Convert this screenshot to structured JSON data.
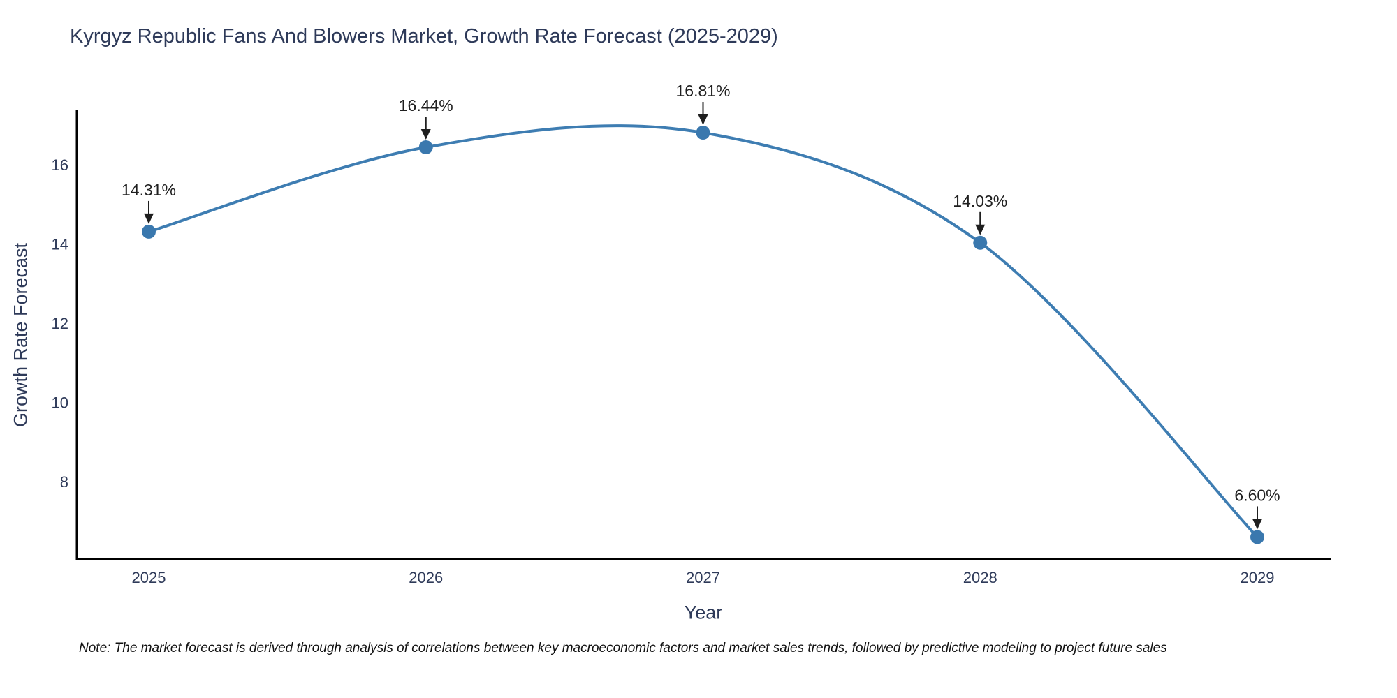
{
  "note": "Note: The market forecast is derived through analysis of correlations between key macroeconomic factors and market sales trends, followed by predictive modeling to project future sales",
  "chart_data": {
    "type": "line",
    "title": "Kyrgyz Republic Fans And Blowers Market, Growth Rate Forecast (2025-2029)",
    "xlabel": "Year",
    "ylabel": "Growth Rate Forecast",
    "x": [
      2025,
      2026,
      2027,
      2028,
      2029
    ],
    "values": [
      14.31,
      16.44,
      16.81,
      14.03,
      6.6
    ],
    "point_labels": [
      "14.31%",
      "16.44%",
      "16.81%",
      "14.03%",
      "6.60%"
    ],
    "yticks": [
      8,
      10,
      12,
      14,
      16
    ],
    "ylim": [
      6.0,
      17.4
    ],
    "curve": "spline",
    "grid": false,
    "legend_position": "none",
    "line_color": "#3E7DB2",
    "marker_color": "#3A78AE",
    "axis_color": "#000000",
    "text_color": "#2e3a59",
    "annotation_color": "#1f1f1f",
    "marker_size": 10
  }
}
